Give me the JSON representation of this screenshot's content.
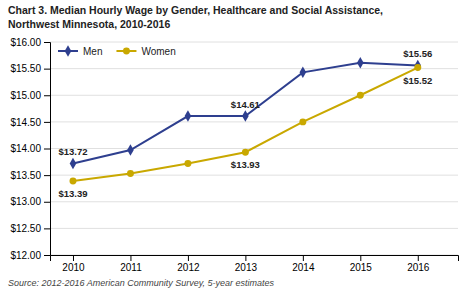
{
  "chart_data": {
    "type": "line",
    "title": "Chart 3. Median Hourly Wage by Gender, Healthcare and Social Assistance,",
    "subtitle": "Northwest Minnesota, 2010-2016",
    "source": "Source: 2012-2016 American Community Survey, 5-year estimates",
    "x": [
      2010,
      2011,
      2012,
      2013,
      2014,
      2015,
      2016
    ],
    "xlim": [
      2009.6,
      2016.7
    ],
    "xticks": [
      2010,
      2011,
      2012,
      2013,
      2014,
      2015,
      2016
    ],
    "ylim": [
      12.0,
      16.0
    ],
    "yticks": [
      {
        "value": 12.0,
        "label": "$12.00"
      },
      {
        "value": 12.5,
        "label": "$12.50"
      },
      {
        "value": 13.0,
        "label": "$13.00"
      },
      {
        "value": 13.5,
        "label": "$13.50"
      },
      {
        "value": 14.0,
        "label": "$14.00"
      },
      {
        "value": 14.5,
        "label": "$14.50"
      },
      {
        "value": 15.0,
        "label": "$15.00"
      },
      {
        "value": 15.5,
        "label": "$15.50"
      },
      {
        "value": 16.0,
        "label": "$16.00"
      }
    ],
    "grid": true,
    "legend": "upper left",
    "series": [
      {
        "name": "Men",
        "color": "#2e3f8f",
        "marker": "diamond",
        "values": [
          13.72,
          13.97,
          14.61,
          14.61,
          15.43,
          15.61,
          15.56
        ],
        "value_labels": [
          "$13.72",
          null,
          null,
          "$14.61",
          null,
          null,
          "$15.56"
        ]
      },
      {
        "name": "Women",
        "color": "#c9a800",
        "marker": "circle",
        "values": [
          13.39,
          13.53,
          13.72,
          13.93,
          14.5,
          15.0,
          15.52
        ],
        "value_labels": [
          "$13.39",
          null,
          null,
          "$13.93",
          null,
          null,
          "$15.52"
        ]
      }
    ]
  }
}
